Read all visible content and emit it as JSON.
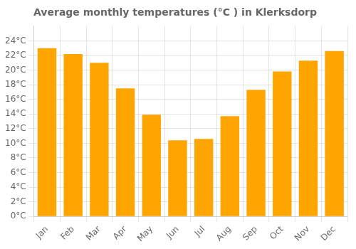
{
  "chart_data": {
    "type": "bar",
    "title": "Average monthly temperatures (°C ) in Klerksdorp",
    "categories": [
      "Jan",
      "Feb",
      "Mar",
      "Apr",
      "May",
      "Jun",
      "Jul",
      "Aug",
      "Sep",
      "Oct",
      "Nov",
      "Dec"
    ],
    "values": [
      23.0,
      22.2,
      21.0,
      17.5,
      13.9,
      10.4,
      10.6,
      13.7,
      17.3,
      19.8,
      21.3,
      22.6
    ],
    "color": "#FFA500",
    "ylim": [
      0,
      26
    ],
    "yticks": [
      {
        "value": 0,
        "label": "0°C"
      },
      {
        "value": 2,
        "label": "2°C"
      },
      {
        "value": 4,
        "label": "4°C"
      },
      {
        "value": 6,
        "label": "6°C"
      },
      {
        "value": 8,
        "label": "8°C"
      },
      {
        "value": 10,
        "label": "10°C"
      },
      {
        "value": 12,
        "label": "12°C"
      },
      {
        "value": 14,
        "label": "14°C"
      },
      {
        "value": 16,
        "label": "16°C"
      },
      {
        "value": 18,
        "label": "18°C"
      },
      {
        "value": 20,
        "label": "20°C"
      },
      {
        "value": 22,
        "label": "22°C"
      },
      {
        "value": 24,
        "label": "24°C"
      }
    ],
    "grid": true
  }
}
